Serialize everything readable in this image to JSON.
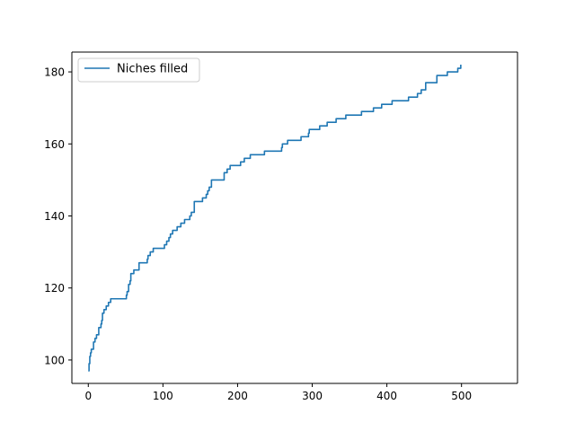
{
  "chart_data": {
    "type": "line",
    "title": "",
    "xlabel": "",
    "ylabel": "",
    "xlim": [
      -22,
      575
    ],
    "ylim": [
      93.5,
      185.5
    ],
    "xticks": [
      0,
      100,
      200,
      300,
      400,
      500
    ],
    "yticks": [
      100,
      120,
      140,
      160,
      180
    ],
    "grid": false,
    "legend_position": "top-left",
    "series": [
      {
        "name": "Niches filled",
        "color": "#1f77b4",
        "step": true,
        "points": [
          [
            0,
            97
          ],
          [
            1,
            99
          ],
          [
            2,
            101
          ],
          [
            3,
            102
          ],
          [
            4,
            103
          ],
          [
            6,
            103
          ],
          [
            7,
            105
          ],
          [
            9,
            106
          ],
          [
            11,
            107
          ],
          [
            13,
            107
          ],
          [
            14,
            109
          ],
          [
            16,
            109
          ],
          [
            17,
            110
          ],
          [
            18,
            111
          ],
          [
            19,
            113
          ],
          [
            21,
            114
          ],
          [
            24,
            115
          ],
          [
            27,
            116
          ],
          [
            30,
            117
          ],
          [
            50,
            117
          ],
          [
            51,
            118
          ],
          [
            52,
            119
          ],
          [
            54,
            121
          ],
          [
            56,
            122
          ],
          [
            57,
            124
          ],
          [
            60,
            124
          ],
          [
            61,
            125
          ],
          [
            67,
            125
          ],
          [
            68,
            127
          ],
          [
            78,
            127
          ],
          [
            79,
            128
          ],
          [
            80,
            129
          ],
          [
            82,
            129
          ],
          [
            83,
            130
          ],
          [
            87,
            131
          ],
          [
            101,
            131
          ],
          [
            102,
            132
          ],
          [
            105,
            133
          ],
          [
            108,
            134
          ],
          [
            110,
            135
          ],
          [
            112,
            135
          ],
          [
            113,
            136
          ],
          [
            118,
            136
          ],
          [
            119,
            137
          ],
          [
            123,
            137
          ],
          [
            124,
            138
          ],
          [
            128,
            138
          ],
          [
            129,
            139
          ],
          [
            135,
            139
          ],
          [
            136,
            140
          ],
          [
            138,
            141
          ],
          [
            141,
            141
          ],
          [
            142,
            144
          ],
          [
            152,
            144
          ],
          [
            153,
            145
          ],
          [
            157,
            145
          ],
          [
            158,
            146
          ],
          [
            160,
            147
          ],
          [
            162,
            148
          ],
          [
            164,
            148
          ],
          [
            165,
            150
          ],
          [
            181,
            150
          ],
          [
            182,
            152
          ],
          [
            185,
            152
          ],
          [
            186,
            153
          ],
          [
            189,
            153
          ],
          [
            190,
            154
          ],
          [
            203,
            154
          ],
          [
            204,
            155
          ],
          [
            208,
            155
          ],
          [
            209,
            156
          ],
          [
            216,
            156
          ],
          [
            217,
            157
          ],
          [
            235,
            157
          ],
          [
            236,
            158
          ],
          [
            258,
            158
          ],
          [
            259,
            159
          ],
          [
            260,
            160
          ],
          [
            266,
            160
          ],
          [
            267,
            161
          ],
          [
            284,
            161
          ],
          [
            285,
            162
          ],
          [
            294,
            162
          ],
          [
            295,
            163
          ],
          [
            296,
            164
          ],
          [
            309,
            164
          ],
          [
            310,
            165
          ],
          [
            319,
            165
          ],
          [
            320,
            166
          ],
          [
            331,
            166
          ],
          [
            332,
            167
          ],
          [
            344,
            167
          ],
          [
            345,
            168
          ],
          [
            365,
            168
          ],
          [
            366,
            169
          ],
          [
            381,
            169
          ],
          [
            382,
            170
          ],
          [
            392,
            170
          ],
          [
            393,
            171
          ],
          [
            406,
            171
          ],
          [
            407,
            172
          ],
          [
            428,
            172
          ],
          [
            429,
            173
          ],
          [
            440,
            173
          ],
          [
            441,
            174
          ],
          [
            445,
            174
          ],
          [
            446,
            175
          ],
          [
            451,
            175
          ],
          [
            452,
            177
          ],
          [
            466,
            177
          ],
          [
            467,
            179
          ],
          [
            480,
            179
          ],
          [
            481,
            180
          ],
          [
            494,
            180
          ],
          [
            495,
            181
          ],
          [
            498,
            181
          ],
          [
            499,
            182
          ]
        ]
      }
    ]
  }
}
